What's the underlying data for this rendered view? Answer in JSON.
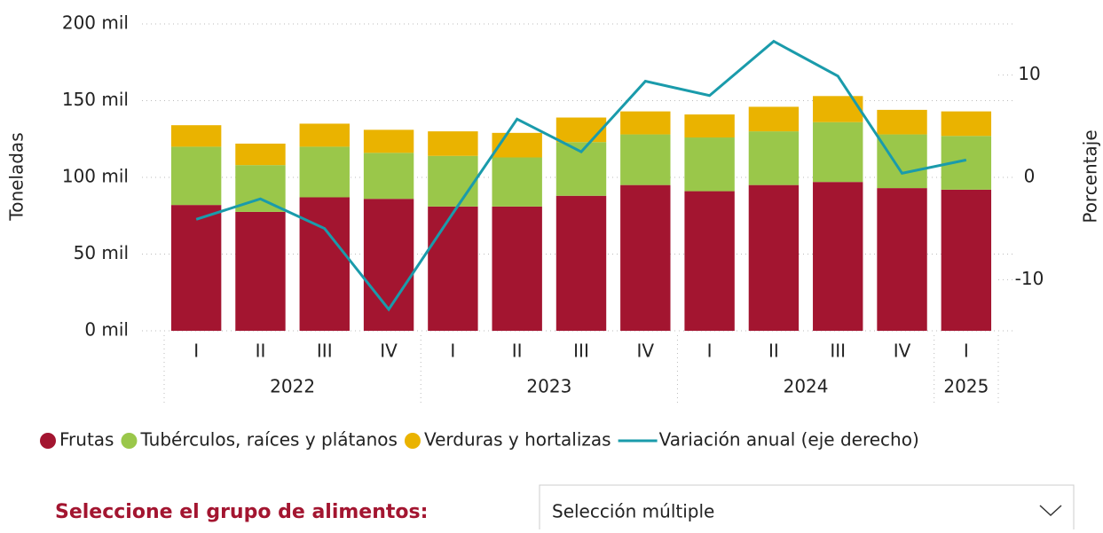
{
  "chart_data": {
    "type": "bar_line",
    "ylabel": "Toneladas",
    "y2label": "Porcentaje",
    "groups": [
      {
        "label": "2022",
        "categories": [
          "I",
          "II",
          "III",
          "IV"
        ]
      },
      {
        "label": "2023",
        "categories": [
          "I",
          "II",
          "III",
          "IV"
        ]
      },
      {
        "label": "2024",
        "categories": [
          "I",
          "II",
          "III",
          "IV"
        ]
      },
      {
        "label": "2025",
        "categories": [
          "I"
        ]
      }
    ],
    "series": [
      {
        "name": "Frutas",
        "type": "bar",
        "color": "#a31530",
        "values": [
          82000,
          77500,
          87000,
          86000,
          81000,
          81000,
          88000,
          95000,
          91000,
          95000,
          97000,
          93000,
          92000
        ]
      },
      {
        "name": "Tubérculos, raíces y plátanos",
        "type": "bar",
        "color": "#9ac74a",
        "values": [
          38000,
          30500,
          33000,
          30000,
          33000,
          32000,
          35000,
          33000,
          35000,
          35000,
          39000,
          35000,
          35000
        ]
      },
      {
        "name": "Verduras y hortalizas",
        "type": "bar",
        "color": "#eab300",
        "values": [
          14000,
          14000,
          15000,
          15000,
          16000,
          16000,
          16000,
          15000,
          15000,
          16000,
          17000,
          16000,
          16000
        ]
      },
      {
        "name": "Variación anual (eje derecho)",
        "type": "line",
        "axis": "y2",
        "color": "#1a9bab",
        "values": [
          -4.1,
          -2.1,
          -5.0,
          -12.9,
          -3.5,
          5.7,
          2.5,
          9.4,
          8.0,
          13.3,
          9.9,
          0.4,
          1.7
        ]
      }
    ],
    "ylim": [
      0,
      200000
    ],
    "yticks": [
      {
        "value": 0,
        "label": "0 mil"
      },
      {
        "value": 50000,
        "label": "50 mil"
      },
      {
        "value": 100000,
        "label": "100 mil"
      },
      {
        "value": 150000,
        "label": "150 mil"
      },
      {
        "value": 200000,
        "label": "200 mil"
      }
    ],
    "y2lim": [
      -15,
      15
    ],
    "y2ticks": [
      -10,
      0,
      10
    ],
    "grid": true,
    "legend": "bottom"
  },
  "slicer": {
    "label": "Seleccione el grupo de alimentos:",
    "value": "Selección múltiple"
  }
}
